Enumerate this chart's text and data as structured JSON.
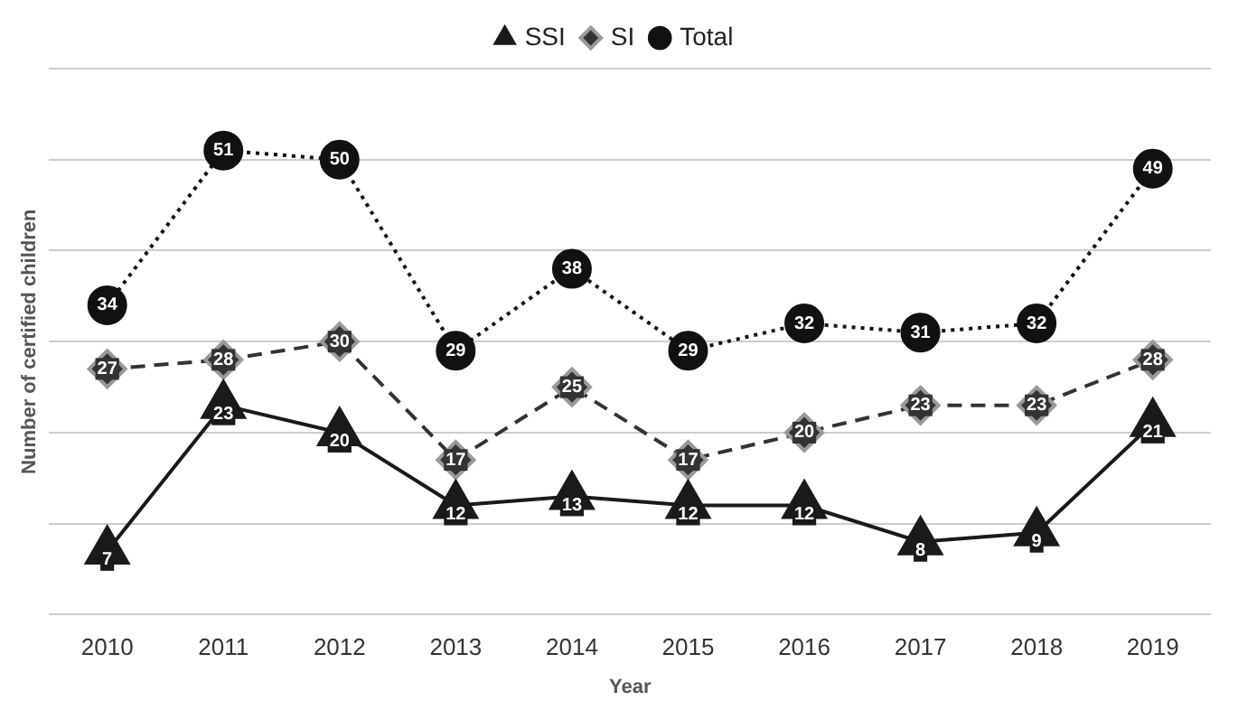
{
  "chart_data": {
    "type": "line",
    "xlabel": "Year",
    "ylabel": "Number of certified children",
    "categories": [
      "2010",
      "2011",
      "2012",
      "2013",
      "2014",
      "2015",
      "2016",
      "2017",
      "2018",
      "2019"
    ],
    "series": [
      {
        "name": "SSI",
        "color": "#1a1a1a",
        "marker": "triangle",
        "line_style": "solid",
        "values": [
          7,
          23,
          20,
          12,
          13,
          12,
          12,
          8,
          9,
          21
        ]
      },
      {
        "name": "SI",
        "color": "#333333",
        "marker": "diamond",
        "line_style": "dashed",
        "values": [
          27,
          28,
          30,
          17,
          25,
          17,
          20,
          23,
          23,
          28
        ]
      },
      {
        "name": "Total",
        "color": "#111111",
        "marker": "circle",
        "line_style": "dotted",
        "values": [
          34,
          51,
          50,
          29,
          38,
          29,
          32,
          31,
          32,
          49
        ]
      }
    ],
    "ylim": [
      0,
      60
    ],
    "yticks": [
      {
        "value": 0,
        "label": null
      },
      {
        "value": 10,
        "label": null
      },
      {
        "value": 20,
        "label": null
      },
      {
        "value": 30,
        "label": null
      },
      {
        "value": 40,
        "label": null
      },
      {
        "value": 50,
        "label": null
      },
      {
        "value": 60,
        "label": null
      }
    ],
    "tick_labels": "x",
    "grid": "y",
    "legend": "top",
    "data_labels": true
  }
}
